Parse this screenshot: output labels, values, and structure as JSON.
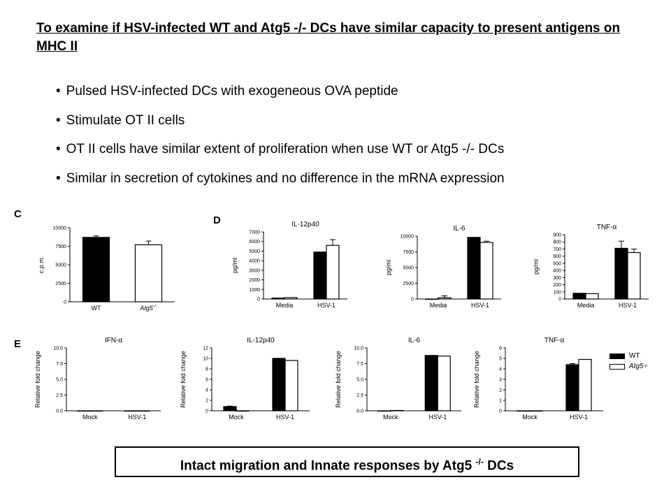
{
  "title": "To examine if HSV-infected WT and Atg5 -/- DCs have similar capacity to present antigens on MHC II",
  "bullets": [
    "Pulsed HSV-infected DCs with exogeneous OVA peptide",
    "Stimulate OT II cells",
    "OT II cells have similar extent of proliferation when use WT or Atg5 -/- DCs",
    "Similar in secretion of cytokines and no difference in the mRNA expression"
  ],
  "panels": {
    "c": "C",
    "d": "D",
    "e": "E"
  },
  "legend": {
    "wt": "WT",
    "ko": "Atg5"
  },
  "summary": {
    "text": "Intact migration and Innate responses by Atg5",
    "sup": "-/-",
    "tail": "DCs"
  },
  "colors": {
    "wt": "#000000",
    "ko": "#ffffff"
  },
  "chart_data": [
    {
      "type": "bar",
      "id": "c",
      "title": "",
      "xlabel": "",
      "ylabel": "c.p.m.",
      "categories": [
        "WT",
        "Atg5"
      ],
      "values": [
        8700,
        7700
      ],
      "errors": [
        200,
        500
      ],
      "ylim": [
        0,
        10000
      ],
      "yticks": [
        0,
        2500,
        5000,
        7500,
        10000
      ]
    },
    {
      "type": "bar",
      "id": "d-il12",
      "title": "IL-12p40",
      "ylabel": "pg/ml",
      "categories": [
        "Media",
        "HSV-1"
      ],
      "series": [
        {
          "name": "WT",
          "values": [
            100,
            4900
          ],
          "errors": [
            0,
            0
          ]
        },
        {
          "name": "Atg5",
          "values": [
            150,
            5600
          ],
          "errors": [
            0,
            600
          ]
        }
      ],
      "ylim": [
        0,
        7000
      ],
      "yticks": [
        0,
        1000,
        2000,
        3000,
        4000,
        5000,
        6000,
        7000
      ]
    },
    {
      "type": "bar",
      "id": "d-il6",
      "title": "IL-6",
      "ylabel": "pg/ml",
      "categories": [
        "Media",
        "HSV-1"
      ],
      "series": [
        {
          "name": "WT",
          "values": [
            0,
            9800
          ],
          "errors": [
            0,
            0
          ]
        },
        {
          "name": "Atg5",
          "values": [
            200,
            9000
          ],
          "errors": [
            300,
            200
          ]
        }
      ],
      "ylim": [
        0,
        10000
      ],
      "yticks": [
        0,
        2500,
        5000,
        7500,
        10000
      ]
    },
    {
      "type": "bar",
      "id": "d-tnf",
      "title": "TNF-α",
      "ylabel": "pg/ml",
      "categories": [
        "Media",
        "HSV-1"
      ],
      "series": [
        {
          "name": "WT",
          "values": [
            80,
            710
          ],
          "errors": [
            0,
            100
          ]
        },
        {
          "name": "Atg5",
          "values": [
            75,
            650
          ],
          "errors": [
            0,
            50
          ]
        }
      ],
      "ylim": [
        0,
        900
      ],
      "yticks": [
        0,
        100,
        200,
        300,
        400,
        500,
        600,
        700,
        800,
        900
      ]
    },
    {
      "type": "bar",
      "id": "e-ifn",
      "title": "IFN-α",
      "ylabel": "Relative fold change",
      "categories": [
        "Mock",
        "HSV-1"
      ],
      "series": [
        {
          "name": "WT",
          "values": [
            0,
            0
          ],
          "errors": [
            0,
            0
          ]
        },
        {
          "name": "Atg5",
          "values": [
            0,
            0
          ],
          "errors": [
            0,
            0
          ]
        }
      ],
      "ylim": [
        0,
        10
      ],
      "yticks": [
        "0.0",
        "2.5",
        "5.0",
        "7.5",
        "10.0"
      ]
    },
    {
      "type": "bar",
      "id": "e-il12",
      "title": "IL-12p40",
      "ylabel": "Relative fold change",
      "categories": [
        "Mock",
        "HSV-1"
      ],
      "series": [
        {
          "name": "WT",
          "values": [
            0.8,
            10
          ],
          "errors": [
            0.1,
            0
          ]
        },
        {
          "name": "Atg5",
          "values": [
            0,
            9.6
          ],
          "errors": [
            0,
            0
          ]
        }
      ],
      "ylim": [
        0,
        12
      ],
      "yticks": [
        "0",
        "2",
        "4",
        "6",
        "8",
        "10",
        "12"
      ]
    },
    {
      "type": "bar",
      "id": "e-il6",
      "title": "IL-6",
      "ylabel": "Relative fold change",
      "categories": [
        "Mock",
        "HSV-1"
      ],
      "series": [
        {
          "name": "WT",
          "values": [
            0,
            8.8
          ],
          "errors": [
            0,
            0
          ]
        },
        {
          "name": "Atg5",
          "values": [
            0.05,
            8.7
          ],
          "errors": [
            0,
            0
          ]
        }
      ],
      "ylim": [
        0,
        10
      ],
      "yticks": [
        "0.0",
        "2.5",
        "5.0",
        "7.5",
        "10.0"
      ]
    },
    {
      "type": "bar",
      "id": "e-tnf",
      "title": "TNF-α",
      "ylabel": "Relative fold change",
      "categories": [
        "Mock",
        "HSV-1"
      ],
      "series": [
        {
          "name": "WT",
          "values": [
            0,
            4.4
          ],
          "errors": [
            0,
            0.1
          ]
        },
        {
          "name": "Atg5",
          "values": [
            0,
            4.9
          ],
          "errors": [
            0,
            0
          ]
        }
      ],
      "ylim": [
        0,
        6
      ],
      "yticks": [
        "0",
        "1",
        "2",
        "3",
        "4",
        "5",
        "6"
      ]
    }
  ]
}
